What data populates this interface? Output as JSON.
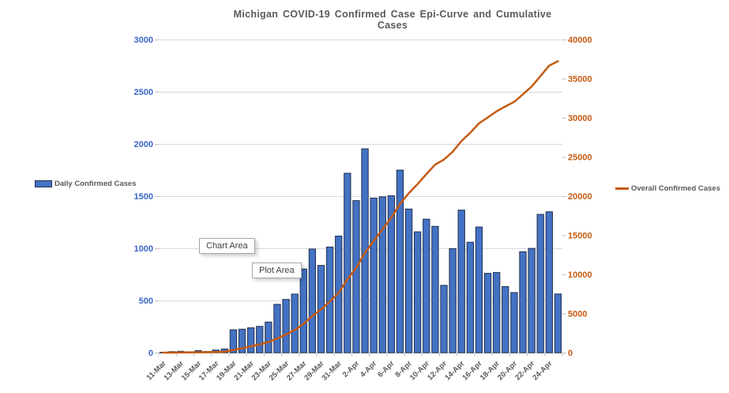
{
  "overlays": {
    "chart_area_label": "Chart Area",
    "plot_area_label": "Plot Area"
  },
  "colors": {
    "bar_fill": "#4472C4",
    "bar_border": "#1F3050",
    "line": "#C55A11",
    "left_axis_text": "#3A66C6",
    "right_axis_text": "#C55A11",
    "gridline": "#D9D9D9",
    "axis_line": "#BFBFBF",
    "title_text": "#595959",
    "date_text": "#595959",
    "tooltip_border": "#A6A6A6",
    "tooltip_text": "#404040"
  },
  "chart_data": {
    "type": "bar",
    "title": "Michigan COVID-19 Confirmed Case Epi-Curve and Cumulative Cases",
    "categories": [
      "11-Mar",
      "12-Mar",
      "13-Mar",
      "14-Mar",
      "15-Mar",
      "16-Mar",
      "17-Mar",
      "18-Mar",
      "19-Mar",
      "20-Mar",
      "21-Mar",
      "22-Mar",
      "23-Mar",
      "24-Mar",
      "25-Mar",
      "26-Mar",
      "27-Mar",
      "28-Mar",
      "29-Mar",
      "30-Mar",
      "31-Mar",
      "1-Apr",
      "2-Apr",
      "3-Apr",
      "4-Apr",
      "5-Apr",
      "6-Apr",
      "7-Apr",
      "8-Apr",
      "9-Apr",
      "10-Apr",
      "11-Apr",
      "12-Apr",
      "13-Apr",
      "14-Apr",
      "15-Apr",
      "16-Apr",
      "17-Apr",
      "18-Apr",
      "19-Apr",
      "20-Apr",
      "21-Apr",
      "22-Apr",
      "23-Apr",
      "24-Apr",
      "25-Apr"
    ],
    "x_label_interval": 2,
    "series": [
      {
        "name": "Daily Confirmed Cases",
        "type": "bar",
        "axis": "left",
        "color": "#4472C4",
        "values": [
          2,
          10,
          13,
          8,
          20,
          12,
          25,
          35,
          219,
          225,
          238,
          252,
          293,
          463,
          510,
          561,
          801,
          993,
          836,
          1012,
          1117,
          1719,
          1457,
          1953,
          1481,
          1493,
          1503,
          1749,
          1376,
          1158,
          1279,
          1210,
          645,
          997,
          1366,
          1058,
          1204,
          760,
          768,
          633,
          576,
          967,
          999,
          1325,
          1350,
          562
        ]
      },
      {
        "name": "Overall Confirmed Cases",
        "type": "line",
        "axis": "right",
        "color": "#C55A11",
        "values": [
          2,
          12,
          25,
          33,
          53,
          65,
          90,
          125,
          344,
          569,
          807,
          1059,
          1352,
          1815,
          2325,
          2886,
          3687,
          4680,
          5516,
          6528,
          7645,
          9364,
          10821,
          12774,
          14255,
          15748,
          17251,
          19000,
          20376,
          21534,
          22813,
          24023,
          24668,
          25665,
          27031,
          28089,
          29293,
          30053,
          30821,
          31454,
          32030,
          32997,
          33996,
          35321,
          36671,
          37233
        ]
      }
    ],
    "left_axis": {
      "min": 0,
      "max": 3000,
      "ticks": [
        0,
        500,
        1000,
        1500,
        2000,
        2500,
        3000
      ]
    },
    "right_axis": {
      "min": 0,
      "max": 40000,
      "ticks": [
        0,
        5000,
        10000,
        15000,
        20000,
        25000,
        30000,
        35000,
        40000
      ]
    },
    "grid": "horizontal",
    "legend_position": "outside-left-and-right"
  }
}
